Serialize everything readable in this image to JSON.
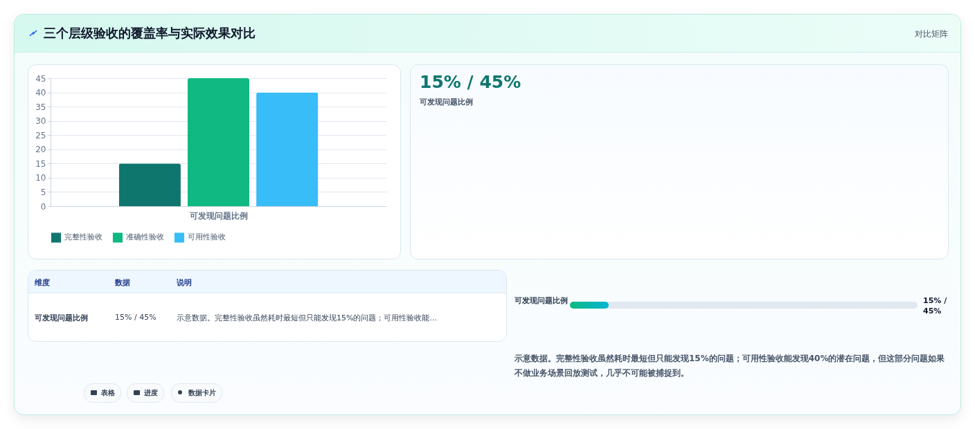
{
  "chart_data": {
    "type": "bar",
    "title": "三个层级验收的覆盖率与实际效果对比",
    "categories": [
      "可发现问题比例"
    ],
    "series": [
      {
        "name": "完整性验收",
        "color": "#0f766e",
        "values": [
          15
        ]
      },
      {
        "name": "准确性验收",
        "color": "#10b981",
        "values": [
          45
        ]
      },
      {
        "name": "可用性验收",
        "color": "#38bdf8",
        "values": [
          40
        ]
      }
    ],
    "ylim": [
      0,
      45
    ],
    "yticks": [
      0,
      5,
      10,
      15,
      20,
      25,
      30,
      35,
      40,
      45
    ],
    "grid": true,
    "legend": "bottom",
    "annotations": [
      "对比矩阵",
      "15% / 45%",
      "可发现问题比例",
      "维度",
      "数据",
      "说明",
      "可发现问题比例",
      "15% / 45%",
      "示意数据。完整性验收虽然耗时最短但只能发现15%的问题；可用性验收能...",
      "可发现问题比例",
      "15% / 45%",
      "示意数据。完整性验收虽然耗时最短但只能发现15%的问题；可用性验收能发现40%的潜在问题，但这部分问题如果不做业务场景回放测试，几乎不可能被捕捉到。",
      "表格",
      "进度",
      "数据卡片"
    ]
  }
}
